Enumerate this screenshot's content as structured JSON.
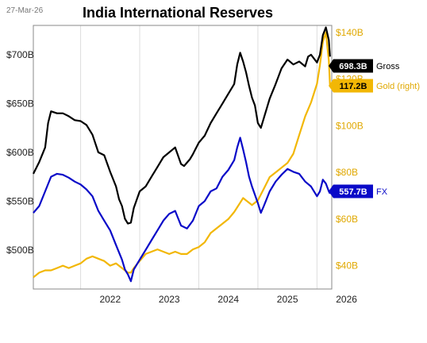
{
  "header": {
    "date": "27-Mar-26",
    "title": "India International Reserves"
  },
  "colors": {
    "gross": "#000000",
    "gold": "#F2B705",
    "fx": "#0A0AC8",
    "grid": "#DDDDDD",
    "axis_right": "#E0A800"
  },
  "chart_data": {
    "type": "line",
    "title": "India International Reserves",
    "x_ticks": [
      "2022",
      "2023",
      "2024",
      "2025",
      "2026"
    ],
    "x_range": [
      2021.2,
      2026.25
    ],
    "left_axis": {
      "ticks": [
        "$500B",
        "$550B",
        "$600B",
        "$650B",
        "$700B"
      ],
      "tick_values": [
        500,
        550,
        600,
        650,
        700
      ],
      "range": [
        460,
        730
      ]
    },
    "right_axis": {
      "ticks": [
        "$40B",
        "$60B",
        "$80B",
        "$100B",
        "$120B",
        "$140B"
      ],
      "tick_values": [
        40,
        60,
        80,
        100,
        120,
        140
      ],
      "range": [
        30,
        143
      ]
    },
    "grid": "vertical",
    "series": [
      {
        "name": "Gross",
        "axis": "left",
        "last_label": "698.3B",
        "points": [
          [
            2021.2,
            578
          ],
          [
            2021.3,
            590
          ],
          [
            2021.4,
            605
          ],
          [
            2021.45,
            630
          ],
          [
            2021.5,
            642
          ],
          [
            2021.6,
            640
          ],
          [
            2021.7,
            640
          ],
          [
            2021.8,
            637
          ],
          [
            2021.9,
            633
          ],
          [
            2022.0,
            632
          ],
          [
            2022.1,
            628
          ],
          [
            2022.2,
            618
          ],
          [
            2022.3,
            600
          ],
          [
            2022.4,
            597
          ],
          [
            2022.5,
            580
          ],
          [
            2022.6,
            565
          ],
          [
            2022.65,
            552
          ],
          [
            2022.7,
            545
          ],
          [
            2022.75,
            532
          ],
          [
            2022.8,
            527
          ],
          [
            2022.85,
            528
          ],
          [
            2022.9,
            543
          ],
          [
            2023.0,
            560
          ],
          [
            2023.1,
            565
          ],
          [
            2023.2,
            575
          ],
          [
            2023.3,
            585
          ],
          [
            2023.4,
            595
          ],
          [
            2023.5,
            600
          ],
          [
            2023.6,
            605
          ],
          [
            2023.7,
            588
          ],
          [
            2023.75,
            586
          ],
          [
            2023.85,
            593
          ],
          [
            2023.9,
            598
          ],
          [
            2024.0,
            610
          ],
          [
            2024.1,
            617
          ],
          [
            2024.2,
            630
          ],
          [
            2024.3,
            640
          ],
          [
            2024.4,
            650
          ],
          [
            2024.5,
            660
          ],
          [
            2024.6,
            670
          ],
          [
            2024.65,
            690
          ],
          [
            2024.7,
            702
          ],
          [
            2024.75,
            693
          ],
          [
            2024.8,
            682
          ],
          [
            2024.85,
            668
          ],
          [
            2024.9,
            656
          ],
          [
            2024.95,
            648
          ],
          [
            2025.0,
            630
          ],
          [
            2025.05,
            625
          ],
          [
            2025.1,
            635
          ],
          [
            2025.2,
            655
          ],
          [
            2025.3,
            670
          ],
          [
            2025.4,
            686
          ],
          [
            2025.5,
            695
          ],
          [
            2025.6,
            690
          ],
          [
            2025.7,
            693
          ],
          [
            2025.8,
            688
          ],
          [
            2025.85,
            698
          ],
          [
            2025.9,
            700
          ],
          [
            2026.0,
            692
          ],
          [
            2026.05,
            700
          ],
          [
            2026.1,
            720
          ],
          [
            2026.15,
            728
          ],
          [
            2026.2,
            715
          ],
          [
            2026.22,
            698
          ]
        ]
      },
      {
        "name": "FX",
        "axis": "left",
        "last_label": "557.7B",
        "points": [
          [
            2021.2,
            538
          ],
          [
            2021.3,
            545
          ],
          [
            2021.4,
            560
          ],
          [
            2021.5,
            575
          ],
          [
            2021.6,
            578
          ],
          [
            2021.7,
            577
          ],
          [
            2021.8,
            574
          ],
          [
            2021.9,
            570
          ],
          [
            2022.0,
            567
          ],
          [
            2022.1,
            562
          ],
          [
            2022.2,
            555
          ],
          [
            2022.3,
            540
          ],
          [
            2022.4,
            530
          ],
          [
            2022.5,
            520
          ],
          [
            2022.6,
            505
          ],
          [
            2022.7,
            490
          ],
          [
            2022.75,
            480
          ],
          [
            2022.8,
            475
          ],
          [
            2022.85,
            468
          ],
          [
            2022.9,
            480
          ],
          [
            2023.0,
            490
          ],
          [
            2023.1,
            500
          ],
          [
            2023.2,
            510
          ],
          [
            2023.3,
            520
          ],
          [
            2023.4,
            530
          ],
          [
            2023.5,
            537
          ],
          [
            2023.6,
            540
          ],
          [
            2023.7,
            525
          ],
          [
            2023.8,
            522
          ],
          [
            2023.9,
            530
          ],
          [
            2024.0,
            545
          ],
          [
            2024.1,
            550
          ],
          [
            2024.2,
            560
          ],
          [
            2024.3,
            563
          ],
          [
            2024.4,
            575
          ],
          [
            2024.5,
            582
          ],
          [
            2024.6,
            592
          ],
          [
            2024.65,
            605
          ],
          [
            2024.7,
            615
          ],
          [
            2024.75,
            603
          ],
          [
            2024.8,
            590
          ],
          [
            2024.85,
            575
          ],
          [
            2024.9,
            565
          ],
          [
            2025.0,
            548
          ],
          [
            2025.05,
            538
          ],
          [
            2025.1,
            545
          ],
          [
            2025.2,
            560
          ],
          [
            2025.3,
            570
          ],
          [
            2025.4,
            577
          ],
          [
            2025.5,
            583
          ],
          [
            2025.6,
            580
          ],
          [
            2025.7,
            578
          ],
          [
            2025.8,
            570
          ],
          [
            2025.9,
            565
          ],
          [
            2026.0,
            555
          ],
          [
            2026.05,
            560
          ],
          [
            2026.1,
            572
          ],
          [
            2026.15,
            568
          ],
          [
            2026.2,
            560
          ],
          [
            2026.22,
            557.7
          ]
        ]
      },
      {
        "name": "Gold (right)",
        "axis": "right",
        "last_label": "117.2B",
        "points": [
          [
            2021.2,
            35
          ],
          [
            2021.3,
            37
          ],
          [
            2021.4,
            38
          ],
          [
            2021.5,
            38
          ],
          [
            2021.6,
            39
          ],
          [
            2021.7,
            40
          ],
          [
            2021.8,
            39
          ],
          [
            2021.9,
            40
          ],
          [
            2022.0,
            41
          ],
          [
            2022.1,
            43
          ],
          [
            2022.2,
            44
          ],
          [
            2022.3,
            43
          ],
          [
            2022.4,
            42
          ],
          [
            2022.5,
            40
          ],
          [
            2022.6,
            41
          ],
          [
            2022.7,
            39
          ],
          [
            2022.75,
            38
          ],
          [
            2022.8,
            37
          ],
          [
            2022.85,
            37
          ],
          [
            2022.9,
            39
          ],
          [
            2023.0,
            42
          ],
          [
            2023.1,
            45
          ],
          [
            2023.2,
            46
          ],
          [
            2023.3,
            47
          ],
          [
            2023.4,
            46
          ],
          [
            2023.5,
            45
          ],
          [
            2023.6,
            46
          ],
          [
            2023.7,
            45
          ],
          [
            2023.8,
            45
          ],
          [
            2023.9,
            47
          ],
          [
            2024.0,
            48
          ],
          [
            2024.1,
            50
          ],
          [
            2024.2,
            54
          ],
          [
            2024.3,
            56
          ],
          [
            2024.4,
            58
          ],
          [
            2024.5,
            60
          ],
          [
            2024.6,
            63
          ],
          [
            2024.7,
            67
          ],
          [
            2024.75,
            69
          ],
          [
            2024.8,
            68
          ],
          [
            2024.9,
            66
          ],
          [
            2025.0,
            68
          ],
          [
            2025.1,
            73
          ],
          [
            2025.2,
            78
          ],
          [
            2025.3,
            80
          ],
          [
            2025.4,
            82
          ],
          [
            2025.5,
            84
          ],
          [
            2025.6,
            88
          ],
          [
            2025.7,
            96
          ],
          [
            2025.8,
            104
          ],
          [
            2025.9,
            110
          ],
          [
            2026.0,
            118
          ],
          [
            2026.05,
            126
          ],
          [
            2026.1,
            136
          ],
          [
            2026.15,
            140
          ],
          [
            2026.2,
            128
          ],
          [
            2026.22,
            117.2
          ]
        ]
      }
    ]
  }
}
